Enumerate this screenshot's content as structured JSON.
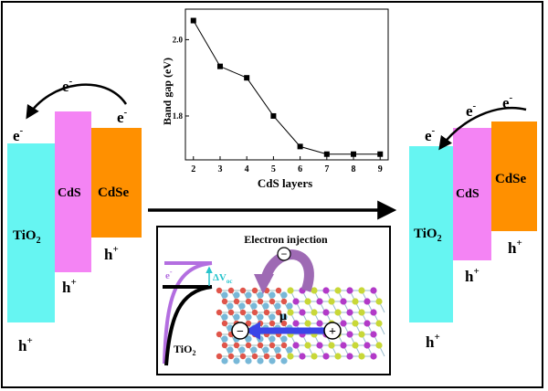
{
  "left_panel": {
    "tio2_label": "TiO",
    "tio2_sub": "2",
    "cds_label": "CdS",
    "cdse_label": "CdSe",
    "electron_left": "e",
    "electron_right": "e",
    "hole_tio2": "h",
    "hole_cds": "h",
    "hole_cdse": "h",
    "minus": "-",
    "plus": "+"
  },
  "right_panel": {
    "tio2_label": "TiO",
    "tio2_sub": "2",
    "cds_label": "CdS",
    "cdse_label": "CdSe",
    "electron_tio2": "e",
    "electron_cds": "e",
    "electron_cdse": "e",
    "hole_tio2": "h",
    "hole_cds": "h",
    "hole_cdse": "h",
    "minus": "-",
    "plus": "+"
  },
  "inset": {
    "title": "Electron injection",
    "electron": "e",
    "delta_v": "ΔV",
    "delta_v_sub": "oc",
    "tio2_label": "TiO",
    "tio2_sub": "2",
    "mu": "μ",
    "minus_sign": "−",
    "plus_sign": "+"
  },
  "colors": {
    "tio2": "#66F5F2",
    "cds": "#F484F4",
    "cdse": "#FF9000",
    "dipole_arrow": "#3A45E8",
    "curve_purple": "#B36EE0",
    "curve_black": "#000000",
    "delta_arrow": "#28C4CC",
    "inject_arrow": "#9E6AB4"
  },
  "chart_data": {
    "type": "line",
    "xlabel": "CdS layers",
    "ylabel": "Band gap (eV)",
    "x": [
      2,
      3,
      4,
      5,
      6,
      7,
      8,
      9
    ],
    "series": [
      {
        "values": [
          2.05,
          1.93,
          1.9,
          1.8,
          1.72,
          1.7,
          1.7,
          1.7
        ]
      }
    ],
    "xticks": [
      "2",
      "3",
      "4",
      "5",
      "6",
      "7",
      "8",
      "9"
    ],
    "yticks": [
      "1.8",
      "2.0"
    ],
    "xlim": [
      1.7,
      9.3
    ],
    "ylim": [
      1.685,
      2.08
    ],
    "grid": false,
    "marker": "square"
  }
}
